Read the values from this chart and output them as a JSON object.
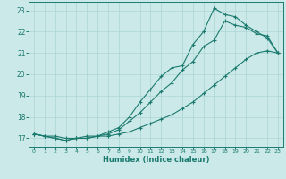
{
  "xlabel": "Humidex (Indice chaleur)",
  "bg_color": "#cce9e9",
  "line_color": "#1a7a6e",
  "grid_color": "#aad4d4",
  "xlim": [
    -0.5,
    23.5
  ],
  "ylim": [
    16.6,
    23.4
  ],
  "xticks": [
    0,
    1,
    2,
    3,
    4,
    5,
    6,
    7,
    8,
    9,
    10,
    11,
    12,
    13,
    14,
    15,
    16,
    17,
    18,
    19,
    20,
    21,
    22,
    23
  ],
  "yticks": [
    17,
    18,
    19,
    20,
    21,
    22,
    23
  ],
  "line1_x": [
    0,
    1,
    2,
    3,
    4,
    5,
    6,
    7,
    8,
    9,
    10,
    11,
    12,
    13,
    14,
    15,
    16,
    17,
    18,
    19,
    20,
    21,
    22,
    23
  ],
  "line1_y": [
    17.2,
    17.1,
    17.1,
    17.0,
    17.0,
    17.0,
    17.1,
    17.1,
    17.2,
    17.3,
    17.5,
    17.7,
    17.9,
    18.1,
    18.4,
    18.7,
    19.1,
    19.5,
    19.9,
    20.3,
    20.7,
    21.0,
    21.1,
    21.0
  ],
  "line2_x": [
    0,
    1,
    2,
    3,
    4,
    5,
    6,
    7,
    8,
    9,
    10,
    11,
    12,
    13,
    14,
    15,
    16,
    17,
    18,
    19,
    20,
    21,
    22,
    23
  ],
  "line2_y": [
    17.2,
    17.1,
    17.0,
    16.9,
    17.0,
    17.0,
    17.1,
    17.2,
    17.4,
    17.8,
    18.2,
    18.7,
    19.2,
    19.6,
    20.2,
    20.6,
    21.3,
    21.6,
    22.5,
    22.3,
    22.2,
    21.9,
    21.8,
    21.0
  ],
  "line3_x": [
    0,
    1,
    2,
    3,
    4,
    5,
    6,
    7,
    8,
    9,
    10,
    11,
    12,
    13,
    14,
    15,
    16,
    17,
    18,
    19,
    20,
    21,
    22,
    23
  ],
  "line3_y": [
    17.2,
    17.1,
    17.0,
    16.9,
    17.0,
    17.1,
    17.1,
    17.3,
    17.5,
    18.0,
    18.7,
    19.3,
    19.9,
    20.3,
    20.4,
    21.4,
    22.0,
    23.1,
    22.8,
    22.7,
    22.3,
    22.0,
    21.7,
    21.0
  ]
}
